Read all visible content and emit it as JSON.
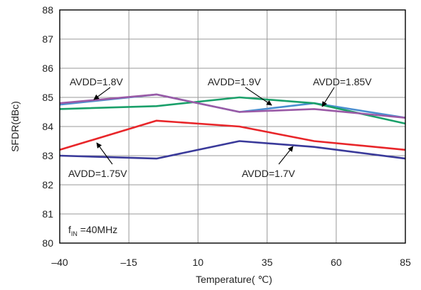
{
  "chart_data": {
    "type": "line",
    "xlabel": "Temperature( ℃)",
    "ylabel": "SFDR(dBc)",
    "xlim": [
      -40,
      85
    ],
    "ylim": [
      80,
      88
    ],
    "xticks": [
      -40,
      -15,
      10,
      35,
      60,
      85
    ],
    "xtick_labels": [
      "–40",
      "–15",
      "10",
      "35",
      "60",
      "85"
    ],
    "yticks": [
      80,
      81,
      82,
      83,
      84,
      85,
      86,
      87,
      88
    ],
    "grid": true,
    "annotation": {
      "main": "f",
      "sub": "IN",
      "rest": " =40MHz"
    },
    "series": [
      {
        "name": "AVDD=1.8V",
        "color": "#4a8fd0",
        "x": [
          -40,
          -5,
          25,
          52,
          85
        ],
        "y": [
          84.75,
          85.1,
          84.5,
          84.8,
          84.3
        ]
      },
      {
        "name": "AVDD=1.9V",
        "color": "#1aa06a",
        "x": [
          -40,
          -5,
          25,
          52,
          85
        ],
        "y": [
          84.6,
          84.7,
          85.0,
          84.8,
          84.1
        ]
      },
      {
        "name": "AVDD=1.85V",
        "color": "#9a5aa6",
        "x": [
          -40,
          -5,
          25,
          52,
          85
        ],
        "y": [
          84.8,
          85.1,
          84.5,
          84.6,
          84.3
        ]
      },
      {
        "name": "AVDD=1.75V",
        "color": "#e8262a",
        "x": [
          -40,
          -5,
          25,
          52,
          85
        ],
        "y": [
          83.2,
          84.2,
          84.0,
          83.5,
          83.2
        ]
      },
      {
        "name": "AVDD=1.7V",
        "color": "#3a3a9a",
        "x": [
          -40,
          -5,
          25,
          52,
          85
        ],
        "y": [
          83.0,
          82.9,
          83.5,
          83.3,
          82.9
        ]
      }
    ]
  }
}
